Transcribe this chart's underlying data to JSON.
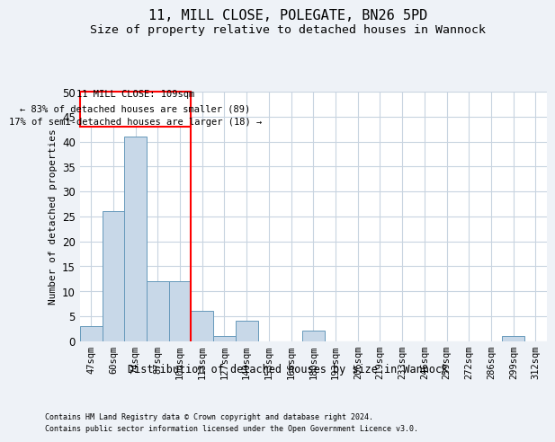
{
  "title": "11, MILL CLOSE, POLEGATE, BN26 5PD",
  "subtitle": "Size of property relative to detached houses in Wannock",
  "xlabel": "Distribution of detached houses by size in Wannock",
  "ylabel": "Number of detached properties",
  "footer_line1": "Contains HM Land Registry data © Crown copyright and database right 2024.",
  "footer_line2": "Contains public sector information licensed under the Open Government Licence v3.0.",
  "annotation_line1": "11 MILL CLOSE: 109sqm",
  "annotation_line2": "← 83% of detached houses are smaller (89)",
  "annotation_line3": "17% of semi-detached houses are larger (18) →",
  "bar_labels": [
    "47sqm",
    "60sqm",
    "74sqm",
    "87sqm",
    "100sqm",
    "113sqm",
    "127sqm",
    "140sqm",
    "153sqm",
    "166sqm",
    "180sqm",
    "193sqm",
    "206sqm",
    "219sqm",
    "233sqm",
    "246sqm",
    "259sqm",
    "272sqm",
    "286sqm",
    "299sqm",
    "312sqm"
  ],
  "bar_values": [
    3,
    26,
    41,
    12,
    12,
    6,
    1,
    4,
    0,
    0,
    2,
    0,
    0,
    0,
    0,
    0,
    0,
    0,
    0,
    1,
    0
  ],
  "bar_color": "#c8d8e8",
  "bar_edge_color": "#6699bb",
  "vline_color": "red",
  "ylim": [
    0,
    50
  ],
  "yticks": [
    0,
    5,
    10,
    15,
    20,
    25,
    30,
    35,
    40,
    45,
    50
  ],
  "bg_color": "#eef2f7",
  "plot_bg_color": "#ffffff",
  "grid_color": "#c8d4e0",
  "annotation_box_color": "red",
  "annotation_font_size": 7.5,
  "title_font_size": 11,
  "subtitle_font_size": 9.5,
  "xlabel_font_size": 8.5,
  "ylabel_font_size": 8,
  "tick_font_size": 7.5,
  "footer_font_size": 6
}
